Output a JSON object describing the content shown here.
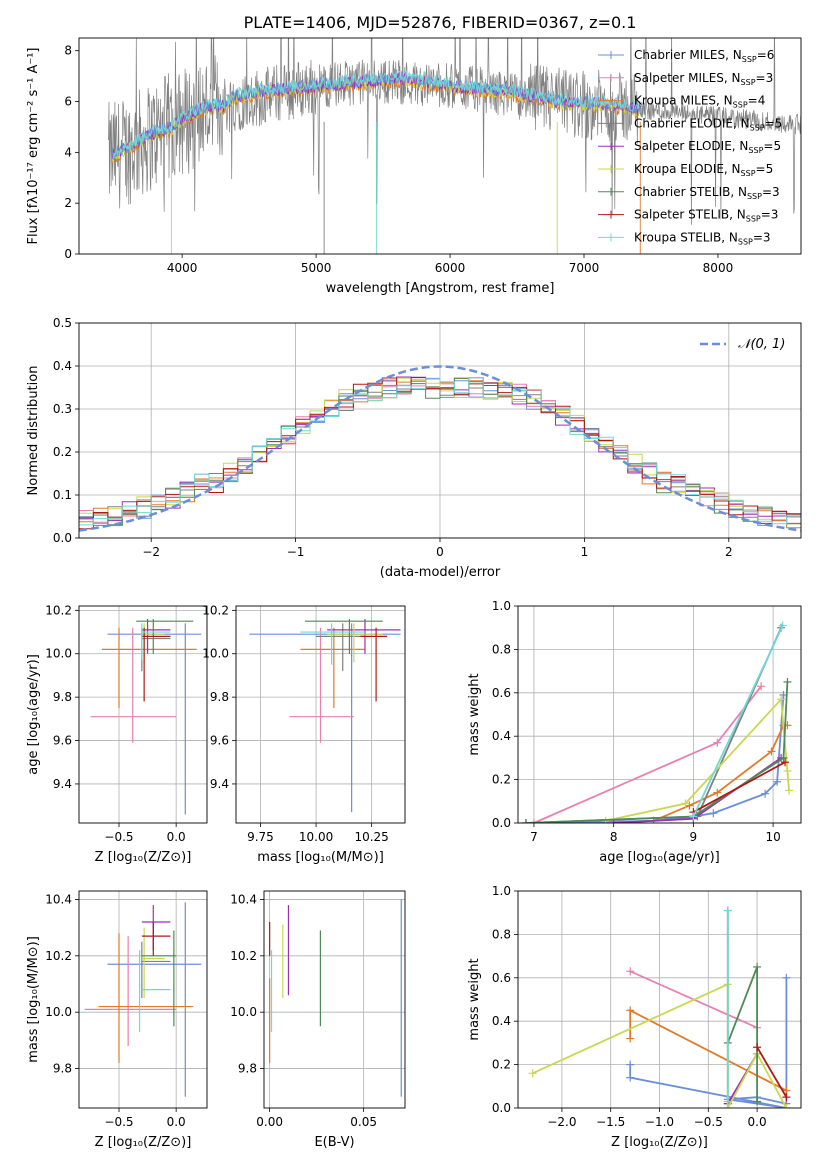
{
  "figure_title": "PLATE=1406, MJD=52876, FIBERID=0367, z=0.1",
  "colors": {
    "chabrier_miles": "#6a8fd8",
    "salpeter_miles": "#e880b0",
    "kroupa_miles": "#e07b27",
    "chabrier_elodie": "#808080",
    "salpeter_elodie": "#9b30b8",
    "kroupa_elodie": "#c8d850",
    "chabrier_stelib": "#4f8a55",
    "salpeter_stelib": "#b01818",
    "kroupa_stelib": "#70d8d8"
  },
  "chart_data": [
    {
      "id": "spectrum",
      "type": "line",
      "title": "PLATE=1406, MJD=52876, FIBERID=0367, z=0.1",
      "xlabel": "wavelength [Angstrom, rest frame]",
      "ylabel": "Flux [fλ10⁻¹⁷ erg cm⁻² s⁻¹ A⁻¹]",
      "xlim": [
        3230,
        8620
      ],
      "ylim": [
        0,
        8.5
      ],
      "xticks": [
        4000,
        5000,
        6000,
        7000,
        8000
      ],
      "yticks": [
        0,
        2,
        4,
        6,
        8
      ],
      "legend_position": "top-right",
      "legend": [
        {
          "label": "Chabrier MILES, N_SSP=6",
          "color_key": "chabrier_miles"
        },
        {
          "label": "Salpeter MILES, N_SSP=3",
          "color_key": "salpeter_miles"
        },
        {
          "label": "Kroupa MILES, N_SSP=4",
          "color_key": "kroupa_miles"
        },
        {
          "label": "Chabrier ELODIE, N_SSP=5",
          "color_key": "chabrier_elodie"
        },
        {
          "label": "Salpeter ELODIE, N_SSP=5",
          "color_key": "salpeter_elodie"
        },
        {
          "label": "Kroupa ELODIE, N_SSP=5",
          "color_key": "kroupa_elodie"
        },
        {
          "label": "Chabrier STELIB, N_SSP=3",
          "color_key": "chabrier_stelib"
        },
        {
          "label": "Salpeter STELIB, N_SSP=3",
          "color_key": "salpeter_stelib"
        },
        {
          "label": "Kroupa STELIB, N_SSP=3",
          "color_key": "kroupa_stelib"
        }
      ],
      "continuum_model": {
        "x": [
          3480,
          3600,
          3700,
          3800,
          3900,
          4000,
          4100,
          4200,
          4300,
          4400,
          4600,
          4800,
          5000,
          5200,
          5400,
          5600,
          5800,
          6000,
          6200,
          6400,
          6600,
          6800,
          7000,
          7200,
          7300,
          7400,
          7430
        ],
        "y": [
          3.9,
          4.2,
          4.5,
          4.8,
          4.9,
          5.3,
          5.6,
          5.8,
          5.8,
          6.2,
          6.4,
          6.5,
          6.6,
          6.7,
          6.8,
          6.9,
          6.8,
          6.6,
          6.5,
          6.4,
          6.2,
          6.0,
          5.9,
          5.9,
          5.8,
          5.7,
          5.7
        ]
      },
      "observed_continuum": {
        "x": [
          3450,
          3600,
          3800,
          4000,
          4200,
          4400,
          4600,
          4800,
          5000,
          5200,
          5400,
          5600,
          5800,
          6000,
          6200,
          6400,
          6600,
          6800,
          7000,
          7200,
          7400,
          7600,
          7800,
          8000,
          8200,
          8400,
          8600
        ],
        "y": [
          3.8,
          4.1,
          4.7,
          5.2,
          5.7,
          6.0,
          6.2,
          6.4,
          6.6,
          6.7,
          6.8,
          6.8,
          6.7,
          6.6,
          6.5,
          6.3,
          6.1,
          6.0,
          5.9,
          5.8,
          5.7,
          5.6,
          5.5,
          5.4,
          5.3,
          5.2,
          5.1
        ]
      }
    },
    {
      "id": "residuals",
      "type": "histogram",
      "xlabel": "(data-model)/error",
      "ylabel": "Normed distribution",
      "xlim": [
        -2.5,
        2.5
      ],
      "ylim": [
        0,
        0.5
      ],
      "xticks": [
        -2,
        -1,
        0,
        1,
        2
      ],
      "yticks": [
        0.0,
        0.1,
        0.2,
        0.3,
        0.4,
        0.5
      ],
      "legend_position": "top-right",
      "reference_curve": {
        "label": "𝒩(0, 1)",
        "mean": 0,
        "sigma": 1,
        "style": "dashed"
      },
      "bin_width": 0.1,
      "bin_start": -2.5
    },
    {
      "id": "age_vs_Z",
      "type": "errorbar",
      "xlabel": "Z [log₁₀(Z/Z⊙)]",
      "ylabel": "age  [log₁₀(age/yr)]",
      "xlim": [
        -0.85,
        0.27
      ],
      "ylim": [
        9.22,
        10.22
      ],
      "xticks": [
        -0.5,
        0.0
      ],
      "yticks": [
        9.4,
        9.6,
        9.8,
        10.0,
        10.2
      ]
    },
    {
      "id": "age_vs_mass",
      "type": "errorbar",
      "xlabel": "mass [log₁₀(M/M⊙)]",
      "ylabel": "",
      "xlim": [
        9.64,
        10.4
      ],
      "ylim": [
        9.22,
        10.22
      ],
      "xticks": [
        9.75,
        10.0,
        10.25
      ],
      "yticks": [
        9.4,
        9.6,
        9.8,
        10.0,
        10.2
      ]
    },
    {
      "id": "mass_weight_vs_age",
      "type": "line",
      "xlabel": "age  [log₁₀(age/yr)]",
      "ylabel": "mass weight",
      "xlim": [
        6.8,
        10.35
      ],
      "ylim": [
        0,
        1
      ],
      "xticks": [
        7,
        8,
        9,
        10
      ],
      "yticks": [
        0.0,
        0.2,
        0.4,
        0.6,
        0.8,
        1.0
      ],
      "series": [
        {
          "color_key": "chabrier_miles",
          "x": [
            6.9,
            8.5,
            9.0,
            9.25,
            9.9,
            10.05,
            10.13
          ],
          "y": [
            0.0,
            0.01,
            0.03,
            0.045,
            0.135,
            0.19,
            0.59
          ]
        },
        {
          "color_key": "salpeter_miles",
          "x": [
            7.0,
            9.3,
            9.85
          ],
          "y": [
            0.0,
            0.37,
            0.63
          ]
        },
        {
          "color_key": "kroupa_miles",
          "x": [
            8.5,
            8.95,
            9.3,
            9.98,
            10.13,
            10.18
          ],
          "y": [
            0.01,
            0.08,
            0.14,
            0.33,
            0.45,
            0.45
          ]
        },
        {
          "color_key": "chabrier_elodie",
          "x": [
            6.9,
            9.05,
            10.1
          ],
          "y": [
            0.0,
            0.03,
            0.9
          ]
        },
        {
          "color_key": "salpeter_elodie",
          "x": [
            8.0,
            9.0,
            10.1
          ],
          "y": [
            0.0,
            0.02,
            0.3
          ]
        },
        {
          "color_key": "kroupa_elodie",
          "x": [
            7.9,
            8.9,
            10.1,
            10.18,
            10.2
          ],
          "y": [
            0.01,
            0.09,
            0.57,
            0.24,
            0.15
          ]
        },
        {
          "color_key": "chabrier_stelib",
          "x": [
            6.9,
            9.0,
            10.13,
            10.18
          ],
          "y": [
            0.0,
            0.03,
            0.3,
            0.65
          ]
        },
        {
          "color_key": "salpeter_stelib",
          "x": [
            9.0,
            10.15
          ],
          "y": [
            0.05,
            0.28
          ]
        },
        {
          "color_key": "kroupa_stelib",
          "x": [
            9.0,
            10.12
          ],
          "y": [
            0.03,
            0.91
          ]
        }
      ]
    },
    {
      "id": "mass_vs_Z",
      "type": "errorbar",
      "xlabel": "Z [log₁₀(Z/Z⊙)]",
      "ylabel": "mass [log₁₀(M/M⊙)]",
      "xlim": [
        -0.85,
        0.27
      ],
      "ylim": [
        9.66,
        10.43
      ],
      "xticks": [
        -0.5,
        0.0
      ],
      "yticks": [
        9.8,
        10.0,
        10.2,
        10.4
      ]
    },
    {
      "id": "mass_vs_EBV",
      "type": "errorbar",
      "xlabel": "E(B-V)",
      "ylabel": "",
      "xlim": [
        -0.003,
        0.072
      ],
      "ylim": [
        9.66,
        10.43
      ],
      "xticks": [
        0.0,
        0.05
      ],
      "yticks": [
        9.8,
        10.0,
        10.2,
        10.4
      ],
      "points": [
        {
          "color_key": "kroupa_miles",
          "x": 0.0,
          "ylo": 9.82,
          "yhi": 10.12
        },
        {
          "color_key": "salpeter_stelib",
          "x": 0.0,
          "ylo": 10.2,
          "yhi": 10.32
        },
        {
          "color_key": "kroupa_stelib",
          "x": 0.001,
          "ylo": 9.93,
          "yhi": 10.22
        },
        {
          "color_key": "kroupa_elodie",
          "x": 0.007,
          "ylo": 10.05,
          "yhi": 10.31
        },
        {
          "color_key": "salpeter_elodie",
          "x": 0.01,
          "ylo": 10.06,
          "yhi": 10.38
        },
        {
          "color_key": "chabrier_stelib",
          "x": 0.027,
          "ylo": 9.95,
          "yhi": 10.29
        },
        {
          "color_key": "chabrier_miles",
          "x": 0.07,
          "ylo": 9.7,
          "yhi": 10.4
        }
      ]
    },
    {
      "id": "mass_weight_vs_Z",
      "type": "line",
      "xlabel": "Z [log₁₀(Z/Z⊙)]",
      "ylabel": "mass weight",
      "xlim": [
        -2.45,
        0.45
      ],
      "ylim": [
        0,
        1
      ],
      "xticks": [
        -2.0,
        -1.5,
        -1.0,
        -0.5,
        0.0
      ],
      "yticks": [
        0.0,
        0.2,
        0.4,
        0.6,
        0.8,
        1.0
      ],
      "series": [
        {
          "color_key": "chabrier_miles",
          "x": [
            -1.3,
            -1.3,
            0.3,
            -0.3,
            0.0,
            0.3,
            0.3
          ],
          "y": [
            0.2,
            0.14,
            0.0,
            0.04,
            0.05,
            0.02,
            0.6
          ]
        },
        {
          "color_key": "salpeter_miles",
          "x": [
            -1.3,
            0.0
          ],
          "y": [
            0.63,
            0.37
          ]
        },
        {
          "color_key": "kroupa_miles",
          "x": [
            -1.3,
            -1.3,
            0.3
          ],
          "y": [
            0.32,
            0.45,
            0.08
          ]
        },
        {
          "color_key": "chabrier_elodie",
          "x": [
            -0.3,
            -0.3
          ],
          "y": [
            0.91,
            0.02
          ]
        },
        {
          "color_key": "salpeter_elodie",
          "x": [
            -0.3,
            0.0
          ],
          "y": [
            0.02,
            0.25
          ]
        },
        {
          "color_key": "kroupa_elodie",
          "x": [
            -2.3,
            -0.3,
            -0.3,
            0.0,
            0.3
          ],
          "y": [
            0.16,
            0.57,
            0.0,
            0.25,
            0.0
          ]
        },
        {
          "color_key": "chabrier_stelib",
          "x": [
            -0.3,
            0.0,
            0.0
          ],
          "y": [
            0.3,
            0.65,
            0.03
          ]
        },
        {
          "color_key": "salpeter_stelib",
          "x": [
            0.0,
            0.3
          ],
          "y": [
            0.28,
            0.05
          ]
        },
        {
          "color_key": "kroupa_stelib",
          "x": [
            -0.3,
            -0.3
          ],
          "y": [
            0.91,
            0.03
          ]
        }
      ]
    }
  ]
}
